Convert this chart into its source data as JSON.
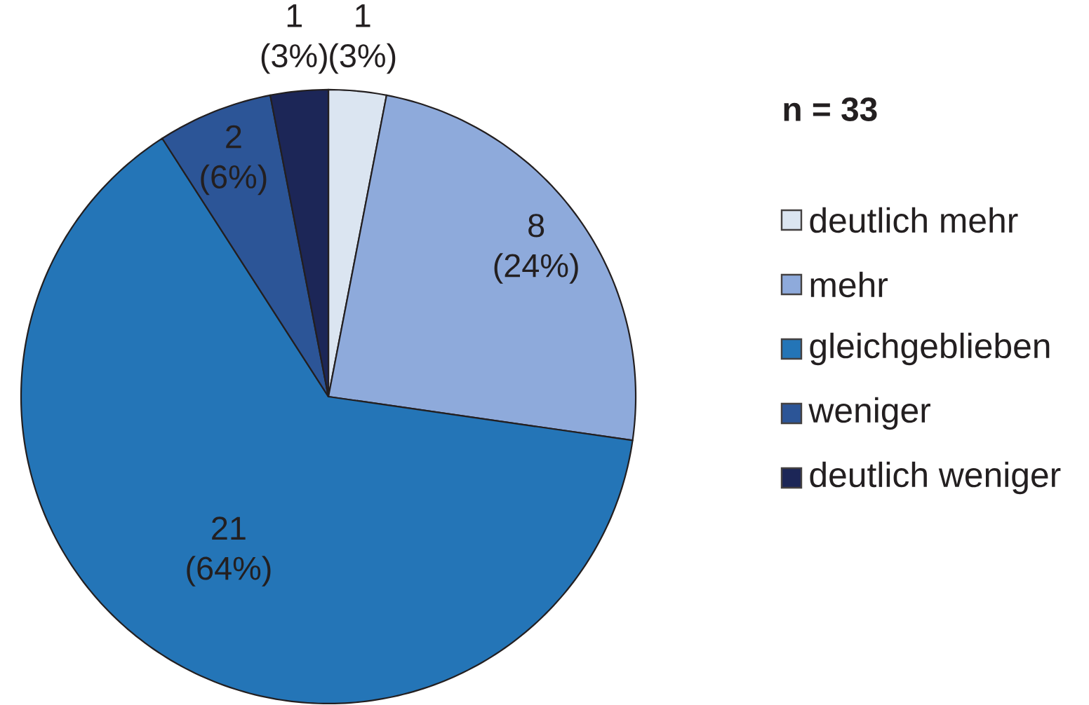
{
  "chart_data": {
    "type": "pie",
    "categories": [
      "deutlich mehr",
      "mehr",
      "gleichgeblieben",
      "weniger",
      "deutlich weniger"
    ],
    "values": [
      1,
      8,
      21,
      2,
      1
    ],
    "colors": [
      "#dbe5f1",
      "#8eaadb",
      "#2475b7",
      "#2c5597",
      "#1c2657"
    ],
    "value_labels": [
      "1 (3%)",
      "8 (24%)",
      "21 (64%)",
      "2 (6%)",
      "1 (3%)"
    ],
    "legend": "right",
    "annotations": [
      "n = 33"
    ]
  }
}
